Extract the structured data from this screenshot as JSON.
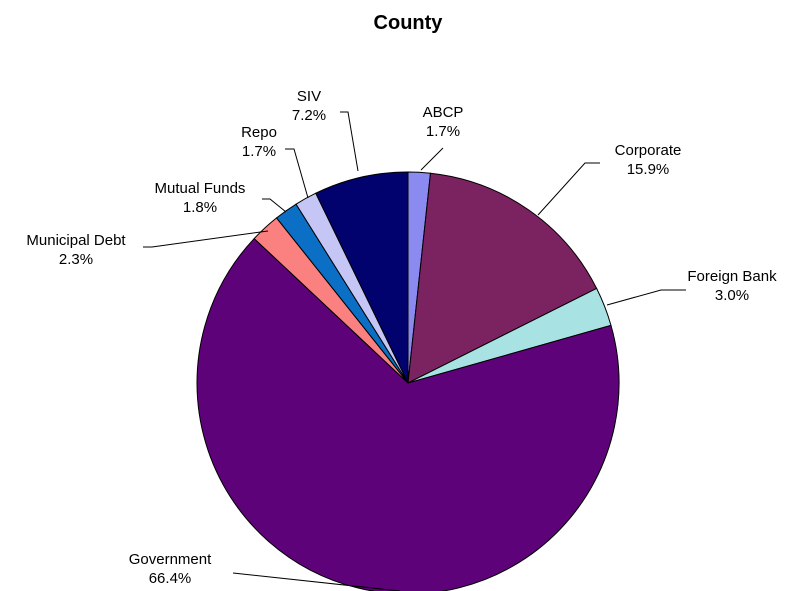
{
  "chart_data": {
    "type": "pie",
    "title": "County",
    "slices": [
      {
        "label": "ABCP",
        "value_label": "1.7%",
        "value": 1.7,
        "color": "#8a8af0"
      },
      {
        "label": "Corporate",
        "value_label": "15.9%",
        "value": 15.9,
        "color": "#7b2260"
      },
      {
        "label": "Foreign Bank",
        "value_label": "3.0%",
        "value": 3.0,
        "color": "#a8e2e2"
      },
      {
        "label": "Government",
        "value_label": "66.4%",
        "value": 66.4,
        "color": "#5e0279"
      },
      {
        "label": "Municipal Debt",
        "value_label": "2.3%",
        "value": 2.3,
        "color": "#fb8080"
      },
      {
        "label": "Mutual Funds",
        "value_label": "1.8%",
        "value": 1.8,
        "color": "#0b70c5"
      },
      {
        "label": "Repo",
        "value_label": "1.7%",
        "value": 1.7,
        "color": "#c6c6f6"
      },
      {
        "label": "SIV",
        "value_label": "7.2%",
        "value": 7.2,
        "color": "#02026e"
      }
    ],
    "start_angle_deg": 0,
    "direction": "clockwise",
    "legend": "none"
  }
}
